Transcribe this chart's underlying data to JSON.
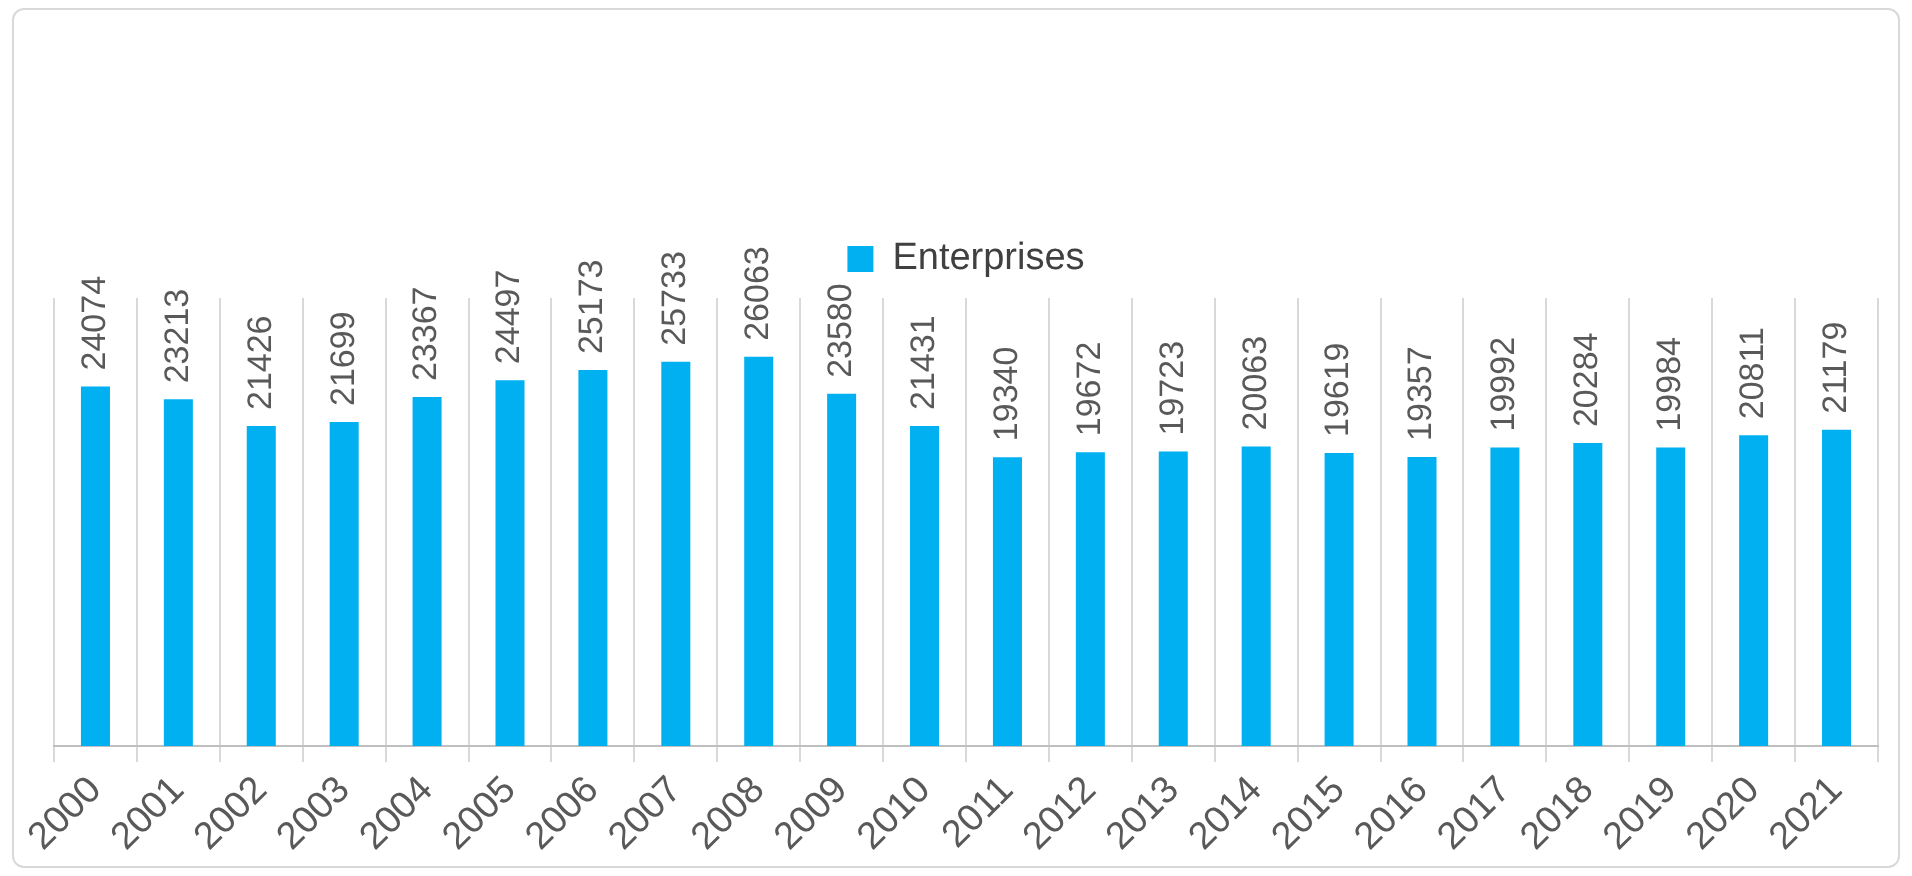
{
  "chart_data": {
    "type": "bar",
    "categories": [
      "2000",
      "2001",
      "2002",
      "2003",
      "2004",
      "2005",
      "2006",
      "2007",
      "2008",
      "2009",
      "2010",
      "2011",
      "2012",
      "2013",
      "2014",
      "2015",
      "2016",
      "2017",
      "2018",
      "2019",
      "2020",
      "2021"
    ],
    "series": [
      {
        "name": "Enterprises",
        "color": "#00b0f0",
        "values": [
          24074,
          23213,
          21426,
          21699,
          23367,
          24497,
          25173,
          25733,
          26063,
          23580,
          21431,
          19340,
          19672,
          19723,
          20063,
          19619,
          19357,
          19992,
          20284,
          19984,
          20811,
          21179
        ]
      }
    ],
    "data_labels": true,
    "grid": "x",
    "legend": "top"
  }
}
